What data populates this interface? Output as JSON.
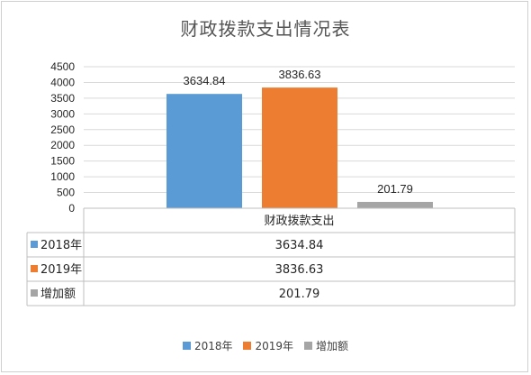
{
  "chart_data": {
    "type": "bar",
    "title": "财政拨款支出情况表",
    "categories": [
      "财政拨款支出"
    ],
    "series": [
      {
        "name": "2018年",
        "values": [
          3634.84
        ],
        "color": "#5b9bd5"
      },
      {
        "name": "2019年",
        "values": [
          3836.63
        ],
        "color": "#ed7d31"
      },
      {
        "name": "增加额",
        "values": [
          201.79
        ],
        "color": "#a5a5a5"
      }
    ],
    "value_labels": [
      "3634.84",
      "3836.63",
      "201.79"
    ],
    "ylim": [
      0,
      4500
    ],
    "yticks": [
      0,
      500,
      1000,
      1500,
      2000,
      2500,
      3000,
      3500,
      4000,
      4500
    ],
    "grid": true,
    "legend": "bottom",
    "data_table": true
  }
}
